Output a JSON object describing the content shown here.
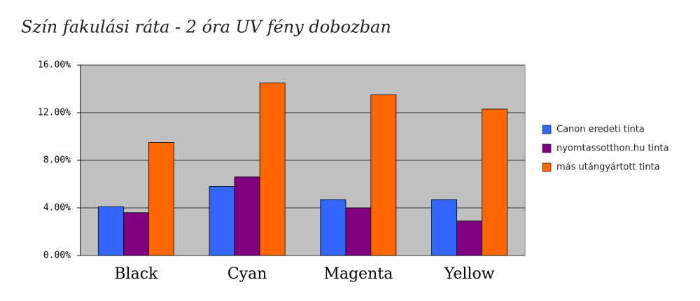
{
  "chart_data": {
    "type": "bar",
    "title": "Szín fakulási ráta - 2 óra UV fény dobozban",
    "categories": [
      "Black",
      "Cyan",
      "Magenta",
      "Yellow"
    ],
    "series": [
      {
        "name": "Canon eredeti tinta",
        "color": "#3366ff",
        "values": [
          4.1,
          5.8,
          4.7,
          4.7
        ]
      },
      {
        "name": "nyomtassotthon.hu tinta",
        "color": "#800080",
        "values": [
          3.6,
          6.6,
          4.0,
          2.9
        ]
      },
      {
        "name": "más utángyártott tinta",
        "color": "#ff6600",
        "values": [
          9.5,
          14.5,
          13.5,
          12.3
        ]
      }
    ],
    "ylim": [
      0,
      16
    ],
    "yticks": [
      {
        "value": 0,
        "label": "0.00%"
      },
      {
        "value": 4,
        "label": "4.00%"
      },
      {
        "value": 8,
        "label": "8.00%"
      },
      {
        "value": 12,
        "label": "12.00%"
      },
      {
        "value": 16,
        "label": "16.00%"
      }
    ],
    "grid": true,
    "legend": "right"
  }
}
